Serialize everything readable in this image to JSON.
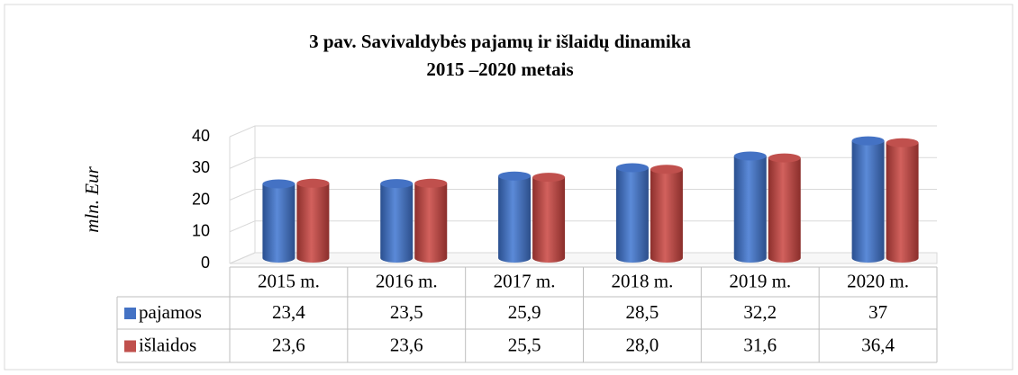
{
  "chart_data": {
    "type": "bar",
    "title": "3 pav. Savivaldybės pajamų ir išlaidų dinamika",
    "subtitle": "2015 –2020 metais",
    "y_label": "mln. Eur",
    "categories": [
      "2015 m.",
      "2016 m.",
      "2017 m.",
      "2018 m.",
      "2019 m.",
      "2020 m."
    ],
    "series": [
      {
        "name": "pajamos",
        "color": "#4472c4",
        "values": [
          23.4,
          23.5,
          25.9,
          28.5,
          32.2,
          37
        ],
        "value_labels": [
          "23,4",
          "23,5",
          "25,9",
          "28,5",
          "32,2",
          "37"
        ]
      },
      {
        "name": "išlaidos",
        "color": "#c0504d",
        "values": [
          23.6,
          23.6,
          25.5,
          28.0,
          31.6,
          36.4
        ],
        "value_labels": [
          "23,6",
          "23,6",
          "25,5",
          "28,0",
          "31,6",
          "36,4"
        ]
      }
    ],
    "ylim": [
      0,
      40
    ],
    "yticks": [
      0,
      10,
      20,
      30,
      40
    ],
    "grid": true
  }
}
